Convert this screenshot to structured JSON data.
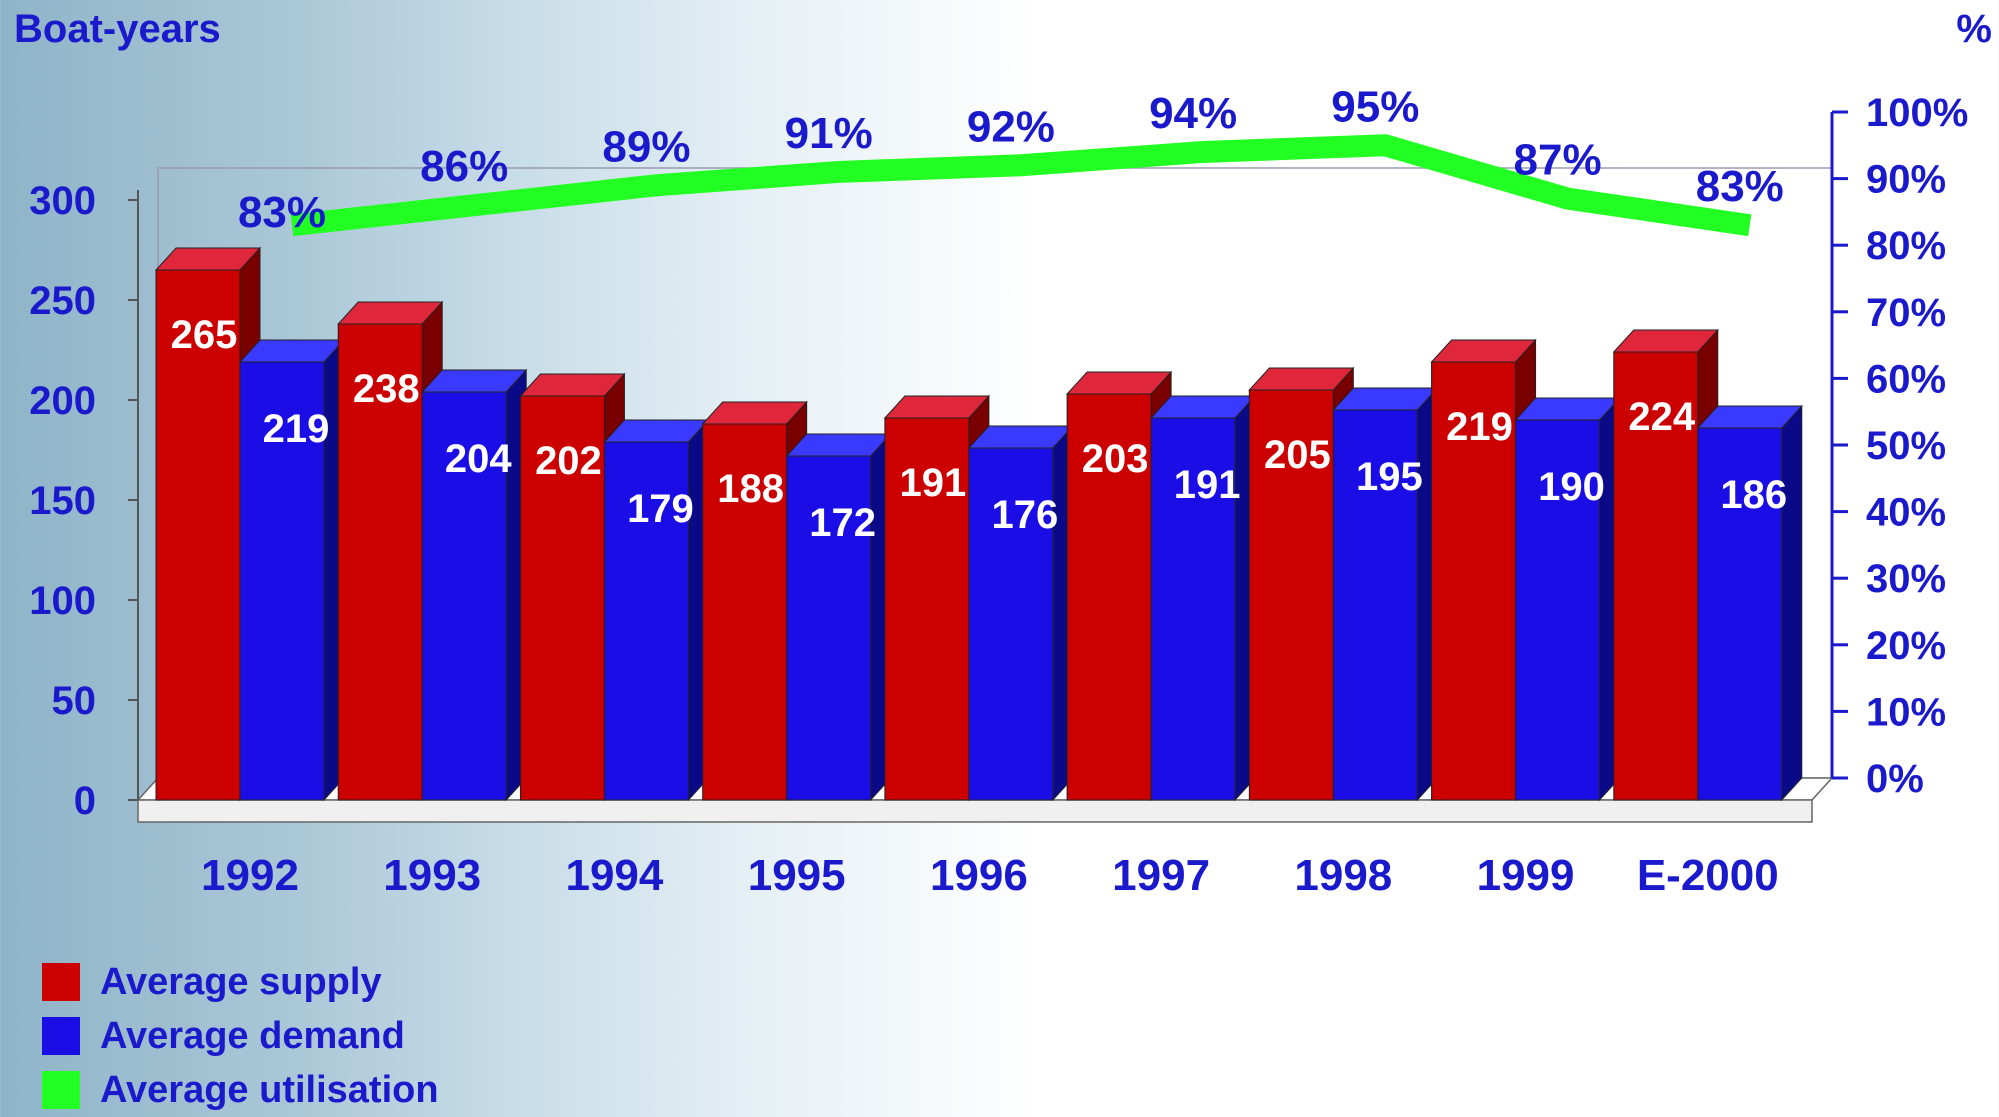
{
  "chart_data": {
    "type": "bar",
    "left_axis_label": "Boat-years",
    "right_axis_label": "%",
    "categories": [
      "1992",
      "1993",
      "1994",
      "1995",
      "1996",
      "1997",
      "1998",
      "1999",
      "E-2000"
    ],
    "series": [
      {
        "name": "Average supply",
        "type": "bar",
        "axis": "left",
        "color": "#cc0000",
        "values": [
          265,
          238,
          202,
          188,
          191,
          203,
          205,
          219,
          224
        ]
      },
      {
        "name": "Average demand",
        "type": "bar",
        "axis": "left",
        "color": "#1a0de6",
        "values": [
          219,
          204,
          179,
          172,
          176,
          191,
          195,
          190,
          186
        ]
      },
      {
        "name": "Average utilisation",
        "type": "line",
        "axis": "right",
        "color": "#22ff22",
        "values": [
          83,
          86,
          89,
          91,
          92,
          94,
          95,
          87,
          83
        ],
        "labels": [
          "83%",
          "86%",
          "89%",
          "91%",
          "92%",
          "94%",
          "95%",
          "87%",
          "83%"
        ]
      }
    ],
    "left_ticks": [
      "0",
      "50",
      "100",
      "150",
      "200",
      "250",
      "300"
    ],
    "left_ylim": [
      0,
      300
    ],
    "right_ticks": [
      "0%",
      "10%",
      "20%",
      "30%",
      "40%",
      "50%",
      "60%",
      "70%",
      "80%",
      "90%",
      "100%"
    ],
    "right_ylim": [
      0,
      100
    ],
    "legend_position": "bottom-left",
    "grid": false
  }
}
